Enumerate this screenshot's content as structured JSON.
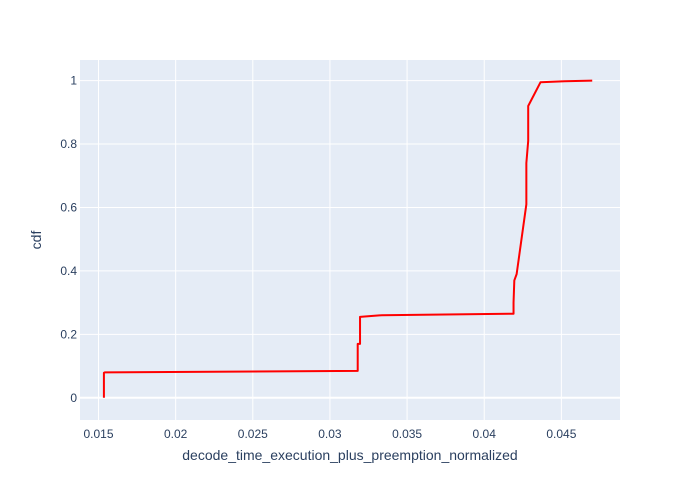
{
  "colors": {
    "plot_background": "#e5ecf6",
    "grid": "#ffffff",
    "line": "#ff0000",
    "text": "#2a3f5f"
  },
  "chart_data": {
    "type": "line",
    "line_shape": "step",
    "xlabel": "decode_time_execution_plus_preemption_normalized",
    "ylabel": "cdf",
    "xlim": [
      0.0138,
      0.0488
    ],
    "ylim": [
      -0.07,
      1.065
    ],
    "grid": true,
    "legend": "none",
    "x_ticks": [
      0.015,
      0.02,
      0.025,
      0.03,
      0.035,
      0.04,
      0.045
    ],
    "x_tick_labels": [
      "0.015",
      "0.02",
      "0.025",
      "0.03",
      "0.035",
      "0.04",
      "0.045"
    ],
    "y_ticks": [
      0,
      0.2,
      0.4,
      0.6,
      0.8,
      1
    ],
    "y_tick_labels": [
      "0",
      "0.2",
      "0.4",
      "0.6",
      "0.8",
      "1"
    ],
    "series": [
      {
        "color": "#ff0000",
        "x": [
          0.01535,
          0.01535,
          0.0154,
          0.0318,
          0.0318,
          0.03195,
          0.03195,
          0.0332,
          0.0419,
          0.0419,
          0.04195,
          0.0421,
          0.04273,
          0.04273,
          0.04285,
          0.04285,
          0.04365,
          0.0452,
          0.047
        ],
        "y": [
          0.0,
          0.079,
          0.08,
          0.085,
          0.17,
          0.17,
          0.255,
          0.26,
          0.265,
          0.3,
          0.37,
          0.39,
          0.61,
          0.74,
          0.81,
          0.92,
          0.995,
          0.998,
          1.0
        ]
      }
    ]
  }
}
